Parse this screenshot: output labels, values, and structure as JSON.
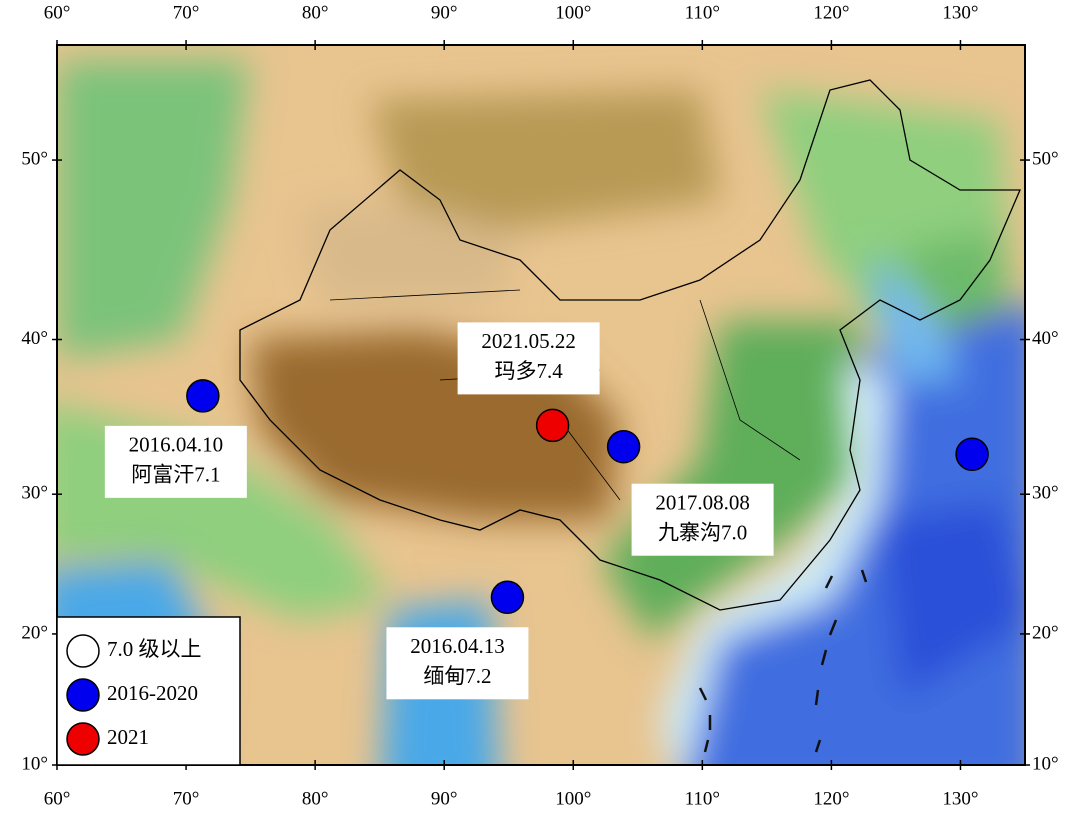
{
  "map": {
    "lon_range": [
      60,
      135
    ],
    "lat_range": [
      10,
      55.5
    ],
    "xticks": [
      {
        "value": 60,
        "label": "60°"
      },
      {
        "value": 70,
        "label": "70°"
      },
      {
        "value": 80,
        "label": "80°"
      },
      {
        "value": 90,
        "label": "90°"
      },
      {
        "value": 100,
        "label": "100°"
      },
      {
        "value": 110,
        "label": "110°"
      },
      {
        "value": 120,
        "label": "120°"
      },
      {
        "value": 130,
        "label": "130°"
      }
    ],
    "yticks": [
      {
        "value": 10,
        "label": "10°"
      },
      {
        "value": 20,
        "label": "20°"
      },
      {
        "value": 30,
        "label": "30°"
      },
      {
        "value": 40,
        "label": "40°"
      },
      {
        "value": 50,
        "label": "50°"
      }
    ],
    "markers": [
      {
        "lon": 71.3,
        "lat": 36.5,
        "group": 1,
        "date": "2016.04.10",
        "name": "阿富汗7.1"
      },
      {
        "lon": 98.4,
        "lat": 34.6,
        "group": 2,
        "date": "2021.05.22",
        "name": "玛多7.4"
      },
      {
        "lon": 103.9,
        "lat": 33.2,
        "group": 1,
        "date": "2017.08.08",
        "name": "九寨沟7.0"
      },
      {
        "lon": 94.9,
        "lat": 22.7,
        "group": 1,
        "date": "2016.04.13",
        "name": "缅甸7.2"
      },
      {
        "lon": 130.9,
        "lat": 32.7,
        "group": 1
      }
    ],
    "legend": [
      {
        "label": "7.0 级以上",
        "color": "#ffffff"
      },
      {
        "label": "2016-2020",
        "color": "#0000ee"
      },
      {
        "label": "2021",
        "color": "#ee0000"
      }
    ]
  }
}
